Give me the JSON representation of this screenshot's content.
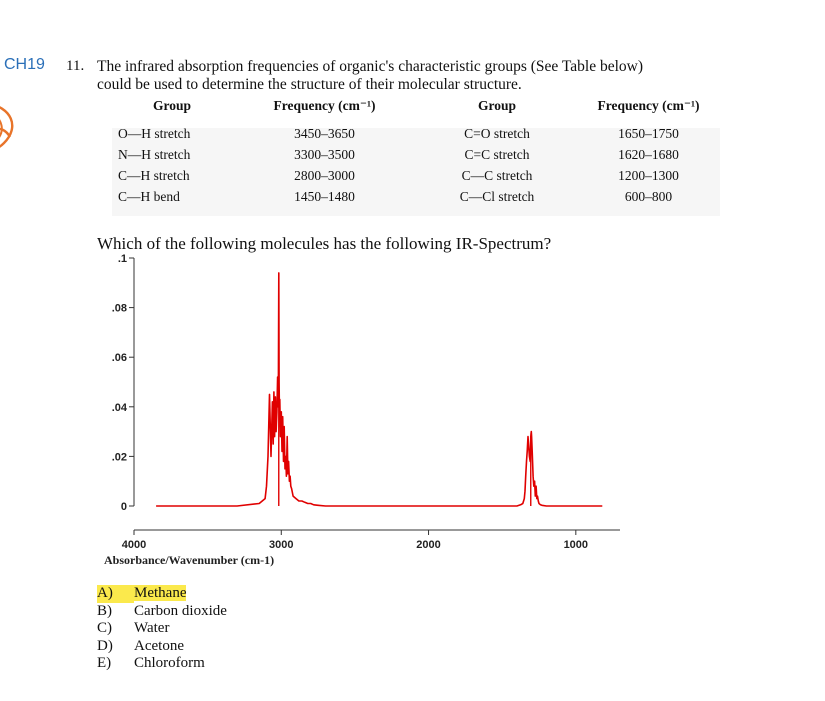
{
  "header": {
    "course_tag": "CH19",
    "question_number": "11.",
    "question_line1": "The infrared absorption frequencies of organic's characteristic groups (See Table below)",
    "question_line2": "could be used to determine the structure of their molecular structure."
  },
  "table": {
    "headers": [
      "Group",
      "Frequency (cm⁻¹)",
      "Group",
      "Frequency (cm⁻¹)"
    ],
    "rows": [
      [
        "O—H stretch",
        "3450–3650",
        "C=O stretch",
        "1650–1750"
      ],
      [
        "N—H stretch",
        "3300–3500",
        "C=C stretch",
        "1620–1680"
      ],
      [
        "C—H stretch",
        "2800–3000",
        "C—C stretch",
        "1200–1300"
      ],
      [
        "C—H bend",
        "1450–1480",
        "C—Cl stretch",
        "600–800"
      ]
    ]
  },
  "prompt": "Which of the following molecules has the following IR-Spectrum?",
  "chart_data": {
    "type": "line",
    "title": "",
    "xlabel": "Absorbance/Wavenumber (cm-1)",
    "ylabel": "",
    "xlim": [
      4000,
      700
    ],
    "ylim": [
      0,
      0.1
    ],
    "x_ticks": [
      4000,
      3000,
      2000,
      1000
    ],
    "x_tick_labels": [
      "4000",
      "3000",
      "2000",
      "1000"
    ],
    "y_ticks": [
      0,
      0.02,
      0.04,
      0.06,
      0.08,
      0.1
    ],
    "y_tick_labels": [
      "0",
      ".02",
      ".04",
      ".06",
      ".08",
      ".1"
    ],
    "line_color": "#e00000",
    "grid": false,
    "series": [
      {
        "x": [
          3850,
          3300,
          3150,
          3110,
          3100,
          3090,
          3080,
          3070,
          3060,
          3055,
          3050,
          3045,
          3040,
          3035,
          3030,
          3025,
          3020,
          3017,
          3015,
          3012,
          3010,
          3005,
          3000,
          2995,
          2990,
          2985,
          2980,
          2975,
          2970,
          2965,
          2960,
          2955,
          2950,
          2945,
          2940,
          2935,
          2930,
          2920,
          2900,
          2880,
          2860,
          2840,
          2820,
          2800,
          2780,
          2750,
          2700,
          2500,
          2200,
          1800,
          1500,
          1400,
          1375,
          1360,
          1350,
          1345,
          1340,
          1335,
          1330,
          1325,
          1320,
          1315,
          1310,
          1306,
          1304,
          1302,
          1300,
          1296,
          1290,
          1285,
          1280,
          1275,
          1270,
          1265,
          1260,
          1255,
          1250,
          1240,
          1230,
          1200,
          1100,
          1000,
          900,
          820
        ],
        "y": [
          0.0,
          0.0,
          0.001,
          0.003,
          0.008,
          0.02,
          0.045,
          0.02,
          0.042,
          0.025,
          0.046,
          0.028,
          0.044,
          0.03,
          0.038,
          0.052,
          0.04,
          0.094,
          0.05,
          0.035,
          0.043,
          0.028,
          0.038,
          0.022,
          0.036,
          0.018,
          0.032,
          0.015,
          0.02,
          0.012,
          0.028,
          0.013,
          0.018,
          0.01,
          0.012,
          0.008,
          0.007,
          0.004,
          0.003,
          0.002,
          0.002,
          0.0015,
          0.001,
          0.001,
          0.0005,
          0.0003,
          0.0,
          0.0,
          0.0,
          0.0,
          0.0,
          0.0,
          0.0005,
          0.001,
          0.003,
          0.006,
          0.012,
          0.018,
          0.022,
          0.028,
          0.024,
          0.02,
          0.018,
          0.028,
          0.029,
          0.03,
          0.028,
          0.022,
          0.012,
          0.008,
          0.01,
          0.004,
          0.008,
          0.003,
          0.004,
          0.002,
          0.001,
          0.0005,
          0.0003,
          0.0,
          0.0,
          0.0,
          0.0,
          0.0
        ]
      }
    ],
    "peak_markers": [
      {
        "x": 3017,
        "y": 0.094
      },
      {
        "x": 1306,
        "y": 0.028
      }
    ]
  },
  "options": [
    {
      "letter": "A)",
      "text": "Methane",
      "selected": true
    },
    {
      "letter": "B)",
      "text": "Carbon dioxide",
      "selected": false
    },
    {
      "letter": "C)",
      "text": "Water",
      "selected": false
    },
    {
      "letter": "D)",
      "text": "Acetone",
      "selected": false
    },
    {
      "letter": "E)",
      "text": "Chloroform",
      "selected": false
    }
  ]
}
